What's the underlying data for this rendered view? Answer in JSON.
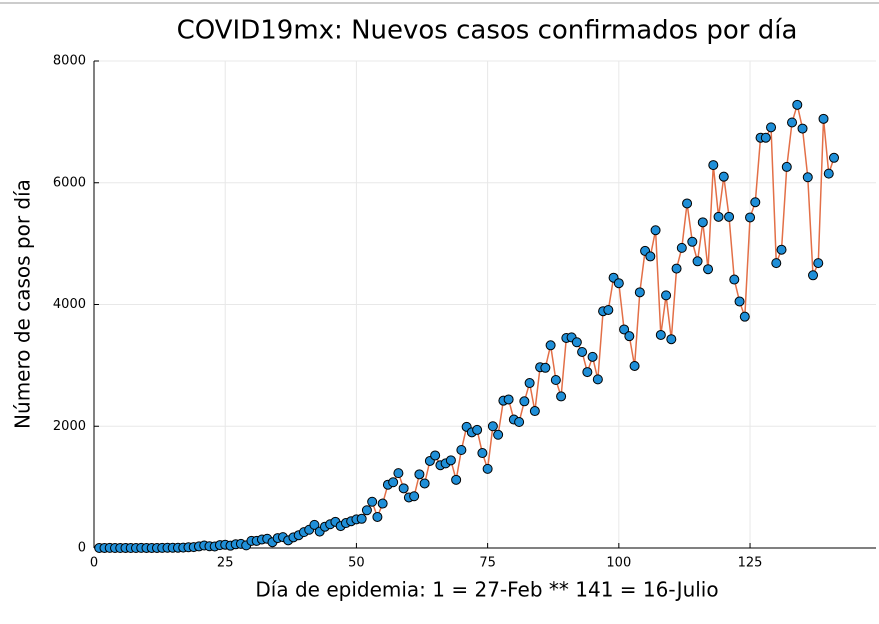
{
  "chart_data": {
    "type": "line",
    "title": "COVID19mx: Nuevos casos confirmados por día",
    "x_label": "Día de epidemia: 1 = 27-Feb ** 141 = 16-Julio",
    "y_label": "Número de casos por día",
    "x": [
      1,
      2,
      3,
      4,
      5,
      6,
      7,
      8,
      9,
      10,
      11,
      12,
      13,
      14,
      15,
      16,
      17,
      18,
      19,
      20,
      21,
      22,
      23,
      24,
      25,
      26,
      27,
      28,
      29,
      30,
      31,
      32,
      33,
      34,
      35,
      36,
      37,
      38,
      39,
      40,
      41,
      42,
      43,
      44,
      45,
      46,
      47,
      48,
      49,
      50,
      51,
      52,
      53,
      54,
      55,
      56,
      57,
      58,
      59,
      60,
      61,
      62,
      63,
      64,
      65,
      66,
      67,
      68,
      69,
      70,
      71,
      72,
      73,
      74,
      75,
      76,
      77,
      78,
      79,
      80,
      81,
      82,
      83,
      84,
      85,
      86,
      87,
      88,
      89,
      90,
      91,
      92,
      93,
      94,
      95,
      96,
      97,
      98,
      99,
      100,
      101,
      102,
      103,
      104,
      105,
      106,
      107,
      108,
      109,
      110,
      111,
      112,
      113,
      114,
      115,
      116,
      117,
      118,
      119,
      120,
      121,
      122,
      123,
      124,
      125,
      126,
      127,
      128,
      129,
      130,
      131,
      132,
      133,
      134,
      135,
      136,
      137,
      138,
      139,
      140,
      141
    ],
    "values": [
      1,
      1,
      2,
      0,
      0,
      1,
      0,
      0,
      2,
      1,
      1,
      1,
      2,
      4,
      4,
      5,
      7,
      12,
      15,
      26,
      41,
      29,
      25,
      48,
      54,
      38,
      61,
      68,
      43,
      117,
      117,
      140,
      152,
      95,
      163,
      179,
      126,
      175,
      210,
      261,
      300,
      380,
      270,
      350,
      390,
      430,
      360,
      410,
      440,
      470,
      480,
      620,
      760,
      510,
      730,
      1040,
      1080,
      1230,
      980,
      830,
      850,
      1210,
      1060,
      1430,
      1520,
      1360,
      1390,
      1440,
      1120,
      1610,
      1990,
      1900,
      1940,
      1560,
      1300,
      2000,
      1860,
      2420,
      2440,
      2110,
      2070,
      2410,
      2710,
      2250,
      2970,
      2960,
      3330,
      2760,
      2490,
      3450,
      3460,
      3380,
      3220,
      2890,
      3140,
      2770,
      3890,
      3910,
      4440,
      4350,
      3590,
      3480,
      2990,
      4200,
      4880,
      4790,
      5220,
      3500,
      4150,
      3430,
      4590,
      4930,
      5660,
      5030,
      4710,
      5350,
      4580,
      6290,
      5440,
      6100,
      5440,
      4410,
      4050,
      3800,
      5430,
      5680,
      6740,
      6740,
      6910,
      4680,
      4900,
      6260,
      6990,
      7280,
      6890,
      6090,
      4480,
      4680,
      7050,
      6150,
      6410
    ],
    "line_color": "#e36f47",
    "marker_color": "#1f8fd8",
    "xlim": [
      0,
      149
    ],
    "xticks": [
      0,
      25,
      50,
      75,
      100,
      125
    ],
    "ylim": [
      0,
      8000
    ],
    "yticks": [
      0,
      2000,
      4000,
      6000,
      8000
    ],
    "grid": true
  }
}
